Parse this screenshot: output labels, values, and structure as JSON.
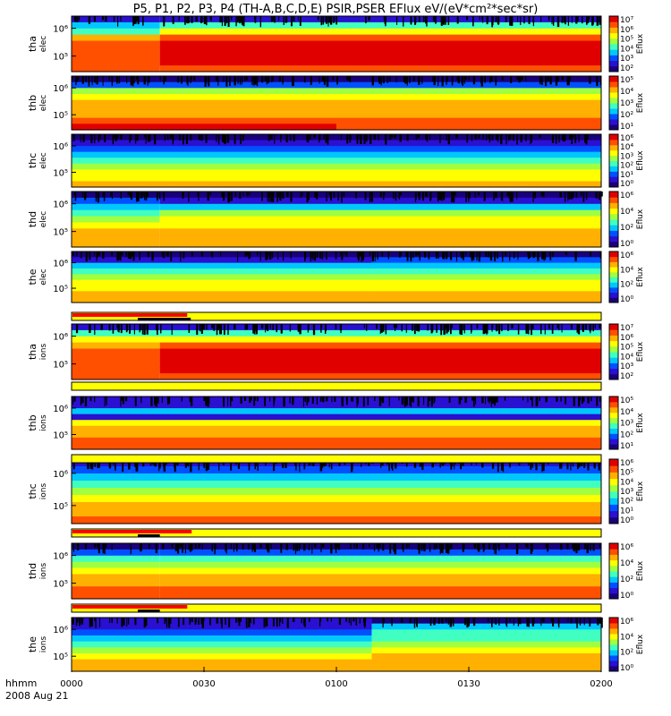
{
  "title": "P5, P1, P2, P3, P4 (TH-A,B,C,D,E) PSIR,PSER EFlux eV/(eV*cm²*sec*sr)",
  "colorbar_label": "Eflux",
  "x_axis": {
    "label_line1": "hhmm",
    "label_line2": "2008 Aug 21",
    "ticks": [
      "0000",
      "0030",
      "0100",
      "0130",
      "0200"
    ],
    "range_minutes": [
      0,
      120
    ]
  },
  "chart_data": {
    "type": "heatmap",
    "colormap": [
      "#1a007a",
      "#2a10d0",
      "#0050ff",
      "#00c8ff",
      "#40ffc0",
      "#a0ff40",
      "#ffff00",
      "#ffb000",
      "#ff5000",
      "#e00000"
    ],
    "panels": [
      {
        "id": "tha-elec",
        "label1": "tha",
        "label2": "elec",
        "y_ticks": [
          "10⁵",
          "10⁶"
        ],
        "cbar_ticks": [
          "10⁷",
          "10⁶",
          "10⁵",
          "10⁴",
          "10³",
          "10²"
        ],
        "change_at_min": 20,
        "bands_before": [
          1,
          3,
          4,
          7,
          8,
          8,
          8,
          8,
          8
        ],
        "bands_after": [
          1,
          4,
          6,
          8,
          9,
          9,
          9,
          9,
          8
        ]
      },
      {
        "id": "thb-elec",
        "label1": "thb",
        "label2": "elec",
        "y_ticks": [
          "10⁵",
          "10⁶"
        ],
        "cbar_ticks": [
          "10⁵",
          "10⁴",
          "10³",
          "10²",
          "10¹"
        ],
        "change_at_min": 60,
        "bands_before": [
          0,
          2,
          5,
          6,
          7,
          7,
          7,
          8,
          9
        ],
        "bands_after": [
          0,
          2,
          5,
          6,
          7,
          7,
          7,
          8,
          8
        ]
      },
      {
        "id": "thc-elec",
        "label1": "thc",
        "label2": "elec",
        "y_ticks": [
          "10⁵",
          "10⁶"
        ],
        "cbar_ticks": [
          "10⁶",
          "10⁴",
          "10³",
          "10²",
          "10¹",
          "10⁰"
        ],
        "change_at_min": 60,
        "bands_before": [
          0,
          1,
          2,
          3,
          4,
          5,
          6,
          6,
          7
        ],
        "bands_after": [
          0,
          1,
          2,
          3,
          4,
          5,
          6,
          6,
          7
        ]
      },
      {
        "id": "thd-elec",
        "label1": "thd",
        "label2": "elec",
        "y_ticks": [
          "10⁵",
          "10⁶"
        ],
        "cbar_ticks": [
          "10⁶",
          "10⁴",
          "10²",
          "10⁰"
        ],
        "change_at_min": 20,
        "bands_before": [
          0,
          2,
          3,
          4,
          5,
          6,
          7,
          7,
          7
        ],
        "bands_after": [
          0,
          1,
          3,
          5,
          6,
          6,
          7,
          7,
          7
        ]
      },
      {
        "id": "the-elec",
        "label1": "the",
        "label2": "elec",
        "y_ticks": [
          "10⁵",
          "10⁶"
        ],
        "cbar_ticks": [
          "10⁶",
          "10⁴",
          "10²",
          "10⁰"
        ],
        "change_at_min": 68,
        "bands_before": [
          0,
          1,
          3,
          4,
          5,
          6,
          6,
          7,
          7
        ],
        "bands_after": [
          0,
          2,
          3,
          4,
          5,
          6,
          6,
          7,
          7
        ]
      },
      {
        "id": "tha-ions",
        "label1": "tha",
        "label2": "ions",
        "y_ticks": [
          "10⁵",
          "10⁶"
        ],
        "cbar_ticks": [
          "10⁷",
          "10⁶",
          "10⁵",
          "10⁴",
          "10³",
          "10²"
        ],
        "change_at_min": 20,
        "bands_before": [
          1,
          4,
          6,
          7,
          8,
          8,
          8,
          8,
          8
        ],
        "bands_after": [
          1,
          4,
          6,
          8,
          9,
          9,
          9,
          9,
          8
        ]
      },
      {
        "id": "thb-ions",
        "label1": "thb",
        "label2": "ions",
        "y_ticks": [
          "10⁵",
          "10⁶"
        ],
        "cbar_ticks": [
          "10⁵",
          "10⁴",
          "10³",
          "10²",
          "10¹"
        ],
        "change_at_min": 60,
        "bands_before": [
          1,
          1,
          3,
          1,
          6,
          7,
          7,
          8,
          8
        ],
        "bands_after": [
          1,
          1,
          3,
          1,
          6,
          7,
          7,
          8,
          8
        ]
      },
      {
        "id": "thc-ions",
        "label1": "thc",
        "label2": "ions",
        "y_ticks": [
          "10⁵",
          "10⁶"
        ],
        "cbar_ticks": [
          "10⁶",
          "10⁵",
          "10⁴",
          "10³",
          "10²",
          "10¹",
          "10⁰"
        ],
        "change_at_min": 60,
        "bands_before": [
          1,
          2,
          3,
          4,
          5,
          6,
          7,
          7,
          8
        ],
        "bands_after": [
          1,
          2,
          3,
          4,
          5,
          6,
          7,
          7,
          8
        ]
      },
      {
        "id": "thd-ions",
        "label1": "thd",
        "label2": "ions",
        "y_ticks": [
          "10⁵",
          "10⁶"
        ],
        "cbar_ticks": [
          "10⁶",
          "10⁴",
          "10²",
          "10⁰"
        ],
        "change_at_min": 20,
        "bands_before": [
          0,
          2,
          4,
          5,
          6,
          7,
          7,
          8,
          8
        ],
        "bands_after": [
          0,
          2,
          4,
          5,
          6,
          7,
          7,
          8,
          8
        ]
      },
      {
        "id": "the-ions",
        "label1": "the",
        "label2": "ions",
        "y_ticks": [
          "10⁵",
          "10⁶"
        ],
        "cbar_ticks": [
          "10⁶",
          "10⁴",
          "10²",
          "10⁰"
        ],
        "change_at_min": 68,
        "bands_before": [
          1,
          1,
          2,
          3,
          4,
          5,
          6,
          7,
          7
        ],
        "bands_after": [
          0,
          3,
          4,
          4,
          5,
          6,
          7,
          7,
          7
        ]
      }
    ],
    "mode_bars": [
      {
        "after_panel": "the-elec",
        "red_until_min": 26,
        "black_from_min": 15,
        "black_until_min": 27
      },
      {
        "after_panel": "tha-ions",
        "red_until_min": 0,
        "black_from_min": 0,
        "black_until_min": 0
      },
      {
        "after_panel": "thb-ions",
        "red_until_min": 0,
        "black_from_min": 0,
        "black_until_min": 0
      },
      {
        "after_panel": "thc-ions",
        "red_until_min": 27,
        "black_from_min": 15,
        "black_until_min": 20
      },
      {
        "after_panel": "thd-ions",
        "red_until_min": 26,
        "black_from_min": 15,
        "black_until_min": 20
      }
    ]
  }
}
